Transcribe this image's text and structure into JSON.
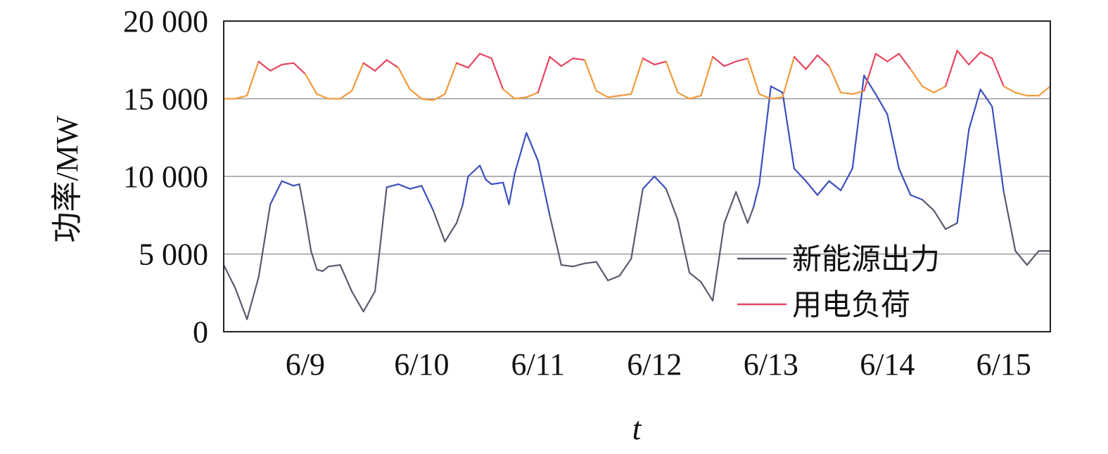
{
  "chart_data": {
    "type": "line",
    "title": "",
    "xlabel": "t",
    "ylabel": "功率/MW",
    "ylim": [
      0,
      20000
    ],
    "yticks": [
      0,
      5000,
      10000,
      15000,
      20000
    ],
    "ytick_labels": [
      "0",
      "5 000",
      "10 000",
      "15 000",
      "20 000"
    ],
    "xlim": [
      8.3,
      15.4
    ],
    "xticks": [
      9,
      10,
      11,
      12,
      13,
      14,
      15
    ],
    "xtick_labels": [
      "6/9",
      "6/10",
      "6/11",
      "6/12",
      "6/13",
      "6/14",
      "6/15"
    ],
    "grid": "horizontal",
    "legend_position": "bottom-right",
    "series": [
      {
        "name": "新能源出力",
        "color": "#5a5a6e",
        "highlight_color": "#3c4fbf",
        "x": [
          8.3,
          8.4,
          8.5,
          8.6,
          8.7,
          8.8,
          8.9,
          8.95,
          9.0,
          9.05,
          9.1,
          9.15,
          9.2,
          9.3,
          9.4,
          9.5,
          9.6,
          9.7,
          9.8,
          9.9,
          10.0,
          10.1,
          10.2,
          10.3,
          10.35,
          10.4,
          10.5,
          10.55,
          10.6,
          10.7,
          10.75,
          10.8,
          10.9,
          11.0,
          11.1,
          11.2,
          11.3,
          11.4,
          11.5,
          11.6,
          11.7,
          11.8,
          11.9,
          12.0,
          12.1,
          12.2,
          12.3,
          12.4,
          12.5,
          12.6,
          12.7,
          12.8,
          12.85,
          12.9,
          13.0,
          13.1,
          13.2,
          13.3,
          13.4,
          13.5,
          13.6,
          13.7,
          13.8,
          13.9,
          14.0,
          14.1,
          14.2,
          14.3,
          14.4,
          14.5,
          14.6,
          14.7,
          14.8,
          14.9,
          15.0,
          15.1,
          15.2,
          15.3,
          15.4
        ],
        "y": [
          4300,
          2800,
          800,
          3500,
          8200,
          9700,
          9400,
          9500,
          7500,
          5200,
          4000,
          3900,
          4200,
          4300,
          2600,
          1300,
          2600,
          9300,
          9500,
          9200,
          9400,
          7800,
          5800,
          7000,
          8100,
          10000,
          10700,
          9800,
          9500,
          9600,
          8200,
          10200,
          12800,
          11000,
          7500,
          4300,
          4200,
          4400,
          4500,
          3300,
          3600,
          4700,
          9200,
          10000,
          9200,
          7200,
          3800,
          3200,
          2000,
          7000,
          9000,
          7000,
          8000,
          9500,
          15800,
          15400,
          10500,
          9700,
          8800,
          9700,
          9100,
          10500,
          16500,
          15300,
          14000,
          10500,
          8800,
          8500,
          7800,
          6600,
          7000,
          13000,
          15600,
          14500,
          9000,
          5200,
          4300,
          5200,
          5200
        ]
      },
      {
        "name": "用电负荷",
        "color": "#f09a3c",
        "highlight_color": "#e84560",
        "x": [
          8.3,
          8.4,
          8.5,
          8.6,
          8.7,
          8.8,
          8.9,
          9.0,
          9.1,
          9.2,
          9.3,
          9.4,
          9.5,
          9.6,
          9.7,
          9.8,
          9.9,
          10.0,
          10.1,
          10.2,
          10.3,
          10.4,
          10.5,
          10.6,
          10.7,
          10.8,
          10.9,
          11.0,
          11.1,
          11.2,
          11.3,
          11.4,
          11.5,
          11.6,
          11.7,
          11.8,
          11.9,
          12.0,
          12.1,
          12.2,
          12.3,
          12.4,
          12.5,
          12.6,
          12.7,
          12.8,
          12.9,
          13.0,
          13.1,
          13.2,
          13.3,
          13.4,
          13.5,
          13.6,
          13.7,
          13.8,
          13.9,
          14.0,
          14.1,
          14.2,
          14.3,
          14.4,
          14.5,
          14.6,
          14.7,
          14.8,
          14.9,
          15.0,
          15.1,
          15.2,
          15.3,
          15.4
        ],
        "y": [
          15000,
          15000,
          15200,
          17400,
          16800,
          17200,
          17300,
          16600,
          15300,
          15000,
          15000,
          15500,
          17300,
          16800,
          17500,
          17000,
          15600,
          15000,
          14900,
          15300,
          17300,
          17000,
          17900,
          17600,
          15600,
          15000,
          15100,
          15400,
          17700,
          17100,
          17600,
          17500,
          15500,
          15100,
          15200,
          15300,
          17600,
          17200,
          17400,
          15400,
          15000,
          15200,
          17700,
          17100,
          17400,
          17600,
          15300,
          15000,
          15100,
          17700,
          16900,
          17800,
          17100,
          15400,
          15300,
          15500,
          17900,
          17400,
          17900,
          16900,
          15800,
          15400,
          15800,
          18100,
          17200,
          18000,
          17600,
          15800,
          15400,
          15200,
          15200,
          15800
        ]
      }
    ]
  }
}
